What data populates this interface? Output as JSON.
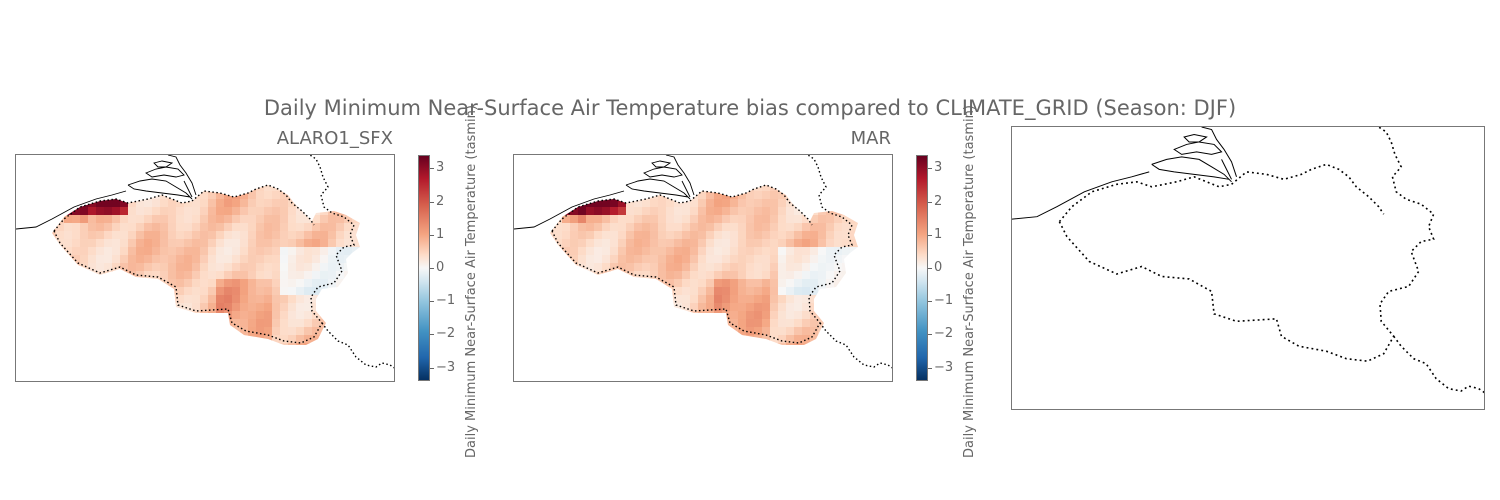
{
  "figure": {
    "suptitle": "Daily Minimum Near-Surface Air Temperature bias compared to CLIMATE_GRID (Season: DJF)"
  },
  "panels": [
    {
      "title": "ALARO1_SFX"
    },
    {
      "title": "MAR"
    },
    {
      "title": ""
    }
  ],
  "colorbar": {
    "label": "Daily Minimum Near-Surface Air Temperature (tasmin)",
    "ticks": [
      "3",
      "2",
      "1",
      "0",
      "−1",
      "−2",
      "−3"
    ],
    "tick_values": [
      3,
      2,
      1,
      0,
      -1,
      -2,
      -3
    ],
    "range": [
      -3.4,
      3.4
    ],
    "colormap": "RdBu_r",
    "colors": [
      "#67001f",
      "#b2182b",
      "#d6604d",
      "#f4a582",
      "#fddbc7",
      "#f7f7f7",
      "#d1e5f0",
      "#92c5de",
      "#4393c3",
      "#2166ac",
      "#053061"
    ]
  },
  "map": {
    "region": "Belgium",
    "border_style": "dotted",
    "coastline_style": "solid"
  }
}
